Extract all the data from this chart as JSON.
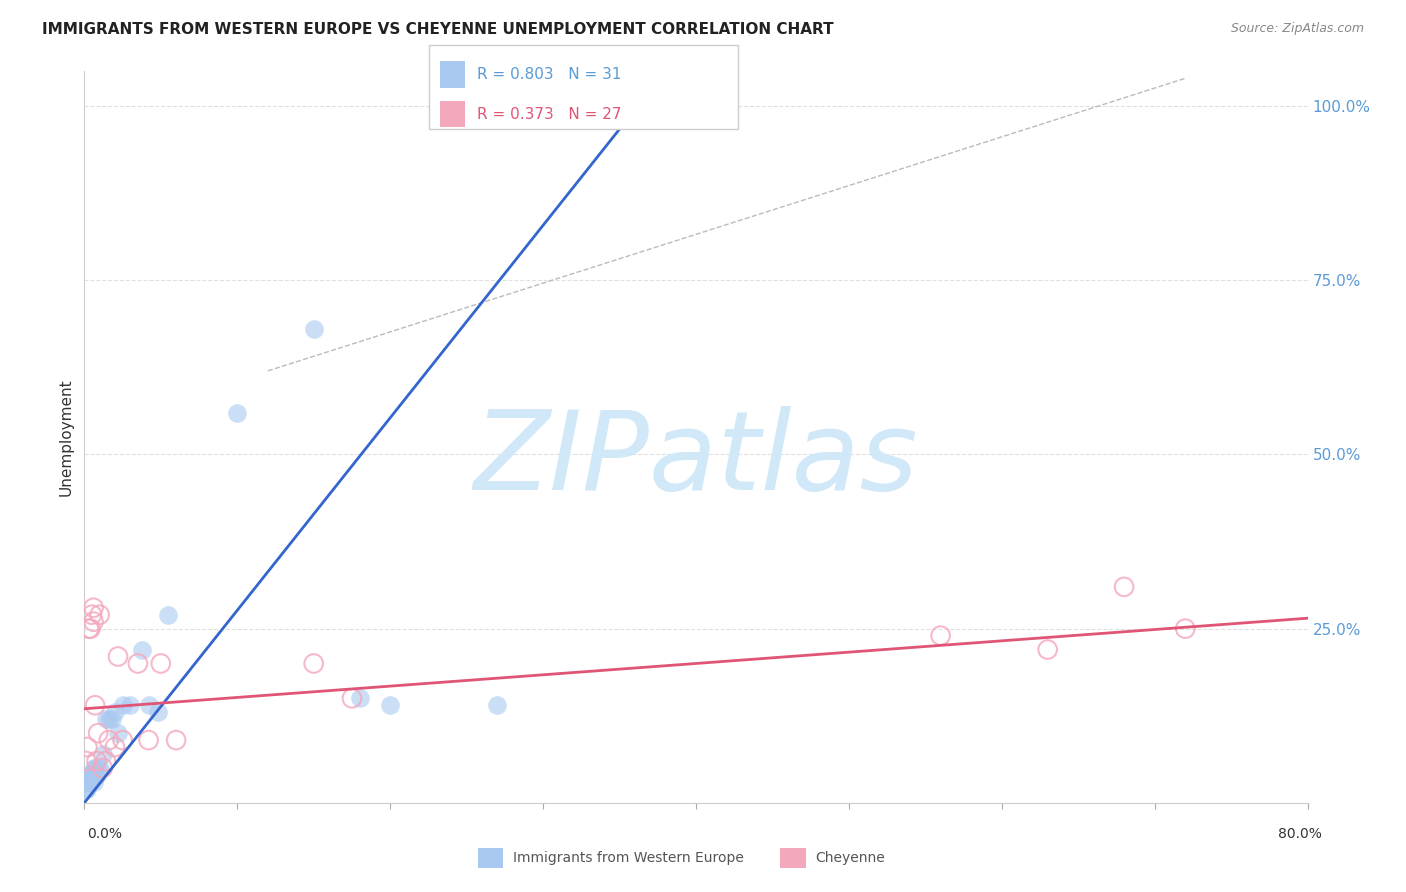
{
  "title": "IMMIGRANTS FROM WESTERN EUROPE VS CHEYENNE UNEMPLOYMENT CORRELATION CHART",
  "source": "Source: ZipAtlas.com",
  "ylabel": "Unemployment",
  "xlim": [
    0.0,
    0.8
  ],
  "ylim": [
    0.0,
    1.05
  ],
  "R1": "0.803",
  "N1": "31",
  "R2": "0.373",
  "N2": "27",
  "watermark_text": "ZIPatlas",
  "blue_color": "#a8c8f0",
  "pink_color": "#f4a8bc",
  "blue_line_color": "#3366cc",
  "pink_line_color": "#e05575",
  "blue_scatter_x": [
    0.001,
    0.002,
    0.002,
    0.003,
    0.003,
    0.004,
    0.004,
    0.005,
    0.006,
    0.006,
    0.007,
    0.008,
    0.009,
    0.01,
    0.012,
    0.014,
    0.016,
    0.018,
    0.02,
    0.022,
    0.025,
    0.03,
    0.038,
    0.042,
    0.048,
    0.055,
    0.1,
    0.15,
    0.18,
    0.2,
    0.27
  ],
  "blue_scatter_y": [
    0.02,
    0.02,
    0.03,
    0.03,
    0.04,
    0.03,
    0.04,
    0.04,
    0.03,
    0.05,
    0.05,
    0.04,
    0.05,
    0.05,
    0.07,
    0.12,
    0.12,
    0.12,
    0.13,
    0.1,
    0.14,
    0.14,
    0.22,
    0.14,
    0.13,
    0.27,
    0.56,
    0.68,
    0.15,
    0.14,
    0.14
  ],
  "pink_scatter_x": [
    0.001,
    0.002,
    0.003,
    0.004,
    0.005,
    0.006,
    0.006,
    0.007,
    0.008,
    0.009,
    0.01,
    0.012,
    0.014,
    0.016,
    0.02,
    0.022,
    0.025,
    0.035,
    0.042,
    0.05,
    0.06,
    0.15,
    0.175,
    0.56,
    0.63,
    0.68,
    0.72
  ],
  "pink_scatter_y": [
    0.06,
    0.08,
    0.25,
    0.25,
    0.27,
    0.26,
    0.28,
    0.14,
    0.06,
    0.1,
    0.27,
    0.05,
    0.06,
    0.09,
    0.08,
    0.21,
    0.09,
    0.2,
    0.09,
    0.2,
    0.09,
    0.2,
    0.15,
    0.24,
    0.22,
    0.31,
    0.25
  ],
  "blue_line_x1": 0.0,
  "blue_line_y1": 0.0,
  "blue_line_x2": 0.38,
  "blue_line_y2": 1.05,
  "pink_line_x1": 0.0,
  "pink_line_y1": 0.135,
  "pink_line_x2": 0.8,
  "pink_line_y2": 0.265,
  "gray_line_x1": 0.12,
  "gray_line_y1": 0.62,
  "gray_line_x2": 0.72,
  "gray_line_y2": 1.04,
  "ytick_vals": [
    0.25,
    0.5,
    0.75,
    1.0
  ],
  "ytick_labels": [
    "25.0%",
    "50.0%",
    "75.0%",
    "100.0%"
  ],
  "grid_color": "#e0e0e0",
  "legend1_label": "Immigrants from Western Europe",
  "legend2_label": "Cheyenne"
}
